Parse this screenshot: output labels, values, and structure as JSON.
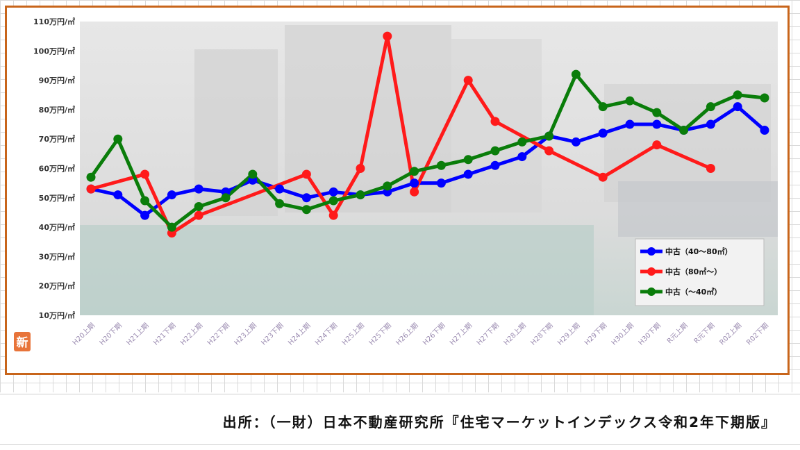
{
  "colors": {
    "frame": "#c8651b",
    "series_blue": "#0000ff",
    "series_red": "#ff1a1a",
    "series_green": "#0a7d0a"
  },
  "icons": {
    "logo": "shin-badge-icon"
  },
  "logo_text": "新",
  "source": {
    "text": "出所：（一財）日本不動産研究所『住宅マーケットインデックス令和2年下期版』"
  },
  "chart_data": {
    "type": "line",
    "title": "",
    "xlabel": "",
    "ylabel": "",
    "ylim": [
      10,
      110
    ],
    "yticks": [
      {
        "value": 10,
        "label": "10万円/㎡"
      },
      {
        "value": 20,
        "label": "20万円/㎡"
      },
      {
        "value": 30,
        "label": "30万円/㎡"
      },
      {
        "value": 40,
        "label": "40万円/㎡"
      },
      {
        "value": 50,
        "label": "50万円/㎡"
      },
      {
        "value": 60,
        "label": "60万円/㎡"
      },
      {
        "value": 70,
        "label": "70万円/㎡"
      },
      {
        "value": 80,
        "label": "80万円/㎡"
      },
      {
        "value": 90,
        "label": "90万円/㎡"
      },
      {
        "value": 100,
        "label": "100万円/㎡"
      },
      {
        "value": 110,
        "label": "110万円/㎡"
      }
    ],
    "categories": [
      "H20上期",
      "H20下期",
      "H21上期",
      "H21下期",
      "H22上期",
      "H22下期",
      "H23上期",
      "H23下期",
      "H24上期",
      "H24下期",
      "H25上期",
      "H25下期",
      "H26上期",
      "H26下期",
      "H27上期",
      "H27下期",
      "H28上期",
      "H28下期",
      "H29上期",
      "H29下期",
      "H30上期",
      "H30下期",
      "R元上期",
      "R元下期",
      "R02上期",
      "R02下期"
    ],
    "grid": false,
    "legend_position": "bottom-right",
    "series": [
      {
        "name": "中古（40～80㎡）",
        "color": "#0000ff",
        "values": [
          53,
          51,
          44,
          51,
          53,
          52,
          56,
          53,
          50,
          52,
          51,
          52,
          55,
          55,
          58,
          61,
          64,
          71,
          69,
          72,
          75,
          75,
          73,
          75,
          81,
          73
        ]
      },
      {
        "name": "中古（80㎡～）",
        "color": "#ff1a1a",
        "values": [
          53,
          null,
          58,
          38,
          44,
          null,
          null,
          null,
          58,
          44,
          60,
          105,
          52,
          null,
          90,
          76,
          null,
          66,
          null,
          57,
          null,
          68,
          null,
          60,
          null,
          null
        ]
      },
      {
        "name": "中古（～40㎡）",
        "color": "#0a7d0a",
        "values": [
          57,
          70,
          49,
          40,
          47,
          50,
          58,
          48,
          46,
          49,
          51,
          54,
          59,
          61,
          63,
          66,
          69,
          71,
          92,
          81,
          83,
          79,
          73,
          81,
          85,
          84
        ]
      }
    ]
  }
}
